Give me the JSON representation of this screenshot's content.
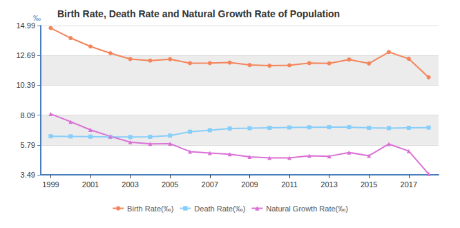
{
  "chart_data": {
    "type": "line",
    "title": "Birth Rate, Death Rate and Natural Growth Rate of Population",
    "y_label": "‰",
    "categories": [
      "1999",
      null,
      "2001",
      null,
      "2003",
      null,
      "2005",
      null,
      "2007",
      null,
      "2009",
      null,
      "2011",
      null,
      "2013",
      null,
      "2015",
      null,
      "2017",
      null
    ],
    "series": [
      {
        "name": "Birth Rate(‰)",
        "color": "#f4845a",
        "marker": "circle",
        "values": [
          14.8,
          14.03,
          13.38,
          12.86,
          12.41,
          12.29,
          12.4,
          12.09,
          12.1,
          12.14,
          11.95,
          11.9,
          11.93,
          12.1,
          12.08,
          12.37,
          12.07,
          12.95,
          12.43,
          11.0
        ]
      },
      {
        "name": "Death Rate(‰)",
        "color": "#87cefa",
        "marker": "square",
        "values": [
          6.46,
          6.45,
          6.43,
          6.41,
          6.4,
          6.42,
          6.51,
          6.81,
          6.93,
          7.06,
          7.08,
          7.11,
          7.14,
          7.15,
          7.16,
          7.16,
          7.11,
          7.09,
          7.11,
          7.13
        ]
      },
      {
        "name": "Natural Growth Rate(‰)",
        "color": "#da70d6",
        "marker": "triangle",
        "values": [
          8.18,
          7.58,
          6.95,
          6.45,
          6.01,
          5.87,
          5.89,
          5.28,
          5.17,
          5.08,
          4.87,
          4.79,
          4.79,
          4.95,
          4.92,
          5.21,
          4.96,
          5.86,
          5.32,
          3.55
        ]
      }
    ],
    "ylim": [
      3.49,
      14.99
    ],
    "yticks": [
      3.49,
      5.79,
      8.09,
      10.39,
      12.69,
      14.99
    ],
    "grid": true,
    "legend": "bottom"
  }
}
